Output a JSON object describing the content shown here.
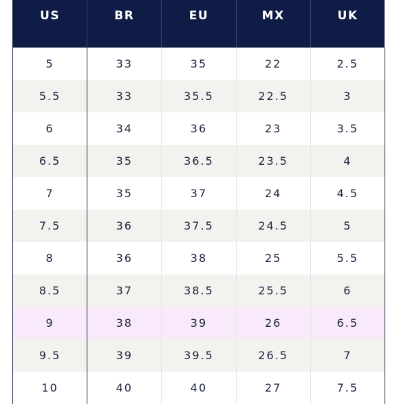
{
  "table": {
    "headers": [
      "US",
      "BR",
      "EU",
      "MX",
      "UK"
    ],
    "rows": [
      [
        "5",
        "33",
        "35",
        "22",
        "2.5"
      ],
      [
        "5.5",
        "33",
        "35.5",
        "22.5",
        "3"
      ],
      [
        "6",
        "34",
        "36",
        "23",
        "3.5"
      ],
      [
        "6.5",
        "35",
        "36.5",
        "23.5",
        "4"
      ],
      [
        "7",
        "35",
        "37",
        "24",
        "4.5"
      ],
      [
        "7.5",
        "36",
        "37.5",
        "24.5",
        "5"
      ],
      [
        "8",
        "36",
        "38",
        "25",
        "5.5"
      ],
      [
        "8.5",
        "37",
        "38.5",
        "25.5",
        "6"
      ],
      [
        "9",
        "38",
        "39",
        "26",
        "6.5"
      ],
      [
        "9.5",
        "39",
        "39.5",
        "26.5",
        "7"
      ],
      [
        "10",
        "40",
        "40",
        "27",
        "7.5"
      ]
    ],
    "highlighted_row_index": 8
  },
  "colors": {
    "header_bg": "#0f1c45",
    "header_text": "#ffffff",
    "body_text": "#1d2240",
    "stripe": "#f3f2ee",
    "highlight": "#f8eafa"
  }
}
